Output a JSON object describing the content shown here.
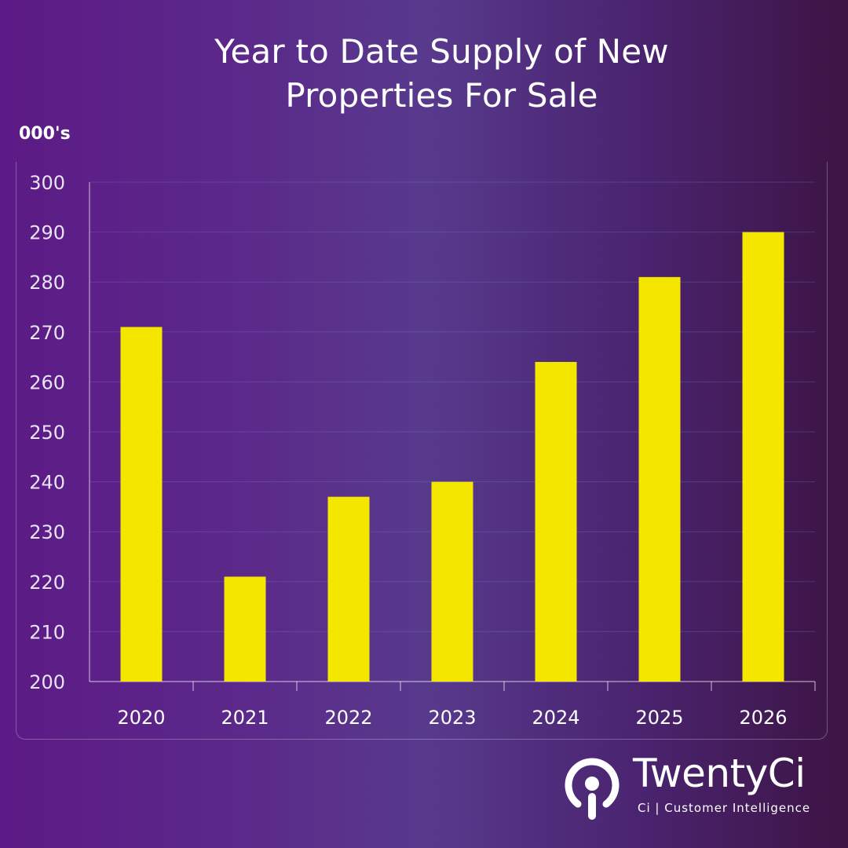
{
  "title_lines": [
    "Year to Date Supply of New",
    "Properties For Sale"
  ],
  "unit_label": "000's",
  "chart_data": {
    "type": "bar",
    "title": "Year to Date Supply of New Properties For Sale",
    "categories": [
      "2020",
      "2021",
      "2022",
      "2023",
      "2024",
      "2025",
      "2026"
    ],
    "values": [
      271,
      221,
      237,
      240,
      264,
      281,
      290
    ],
    "ylabel": "000's",
    "ylim": [
      200,
      300
    ],
    "yticks": [
      200,
      210,
      220,
      230,
      240,
      250,
      260,
      270,
      280,
      290,
      300
    ],
    "grid": true,
    "bar_color": "#f5e600",
    "legend": "none"
  },
  "brand": {
    "name": "TwentyCi",
    "tagline": "Ci | Customer Intelligence",
    "logo_icon": "ci-logo-icon"
  }
}
